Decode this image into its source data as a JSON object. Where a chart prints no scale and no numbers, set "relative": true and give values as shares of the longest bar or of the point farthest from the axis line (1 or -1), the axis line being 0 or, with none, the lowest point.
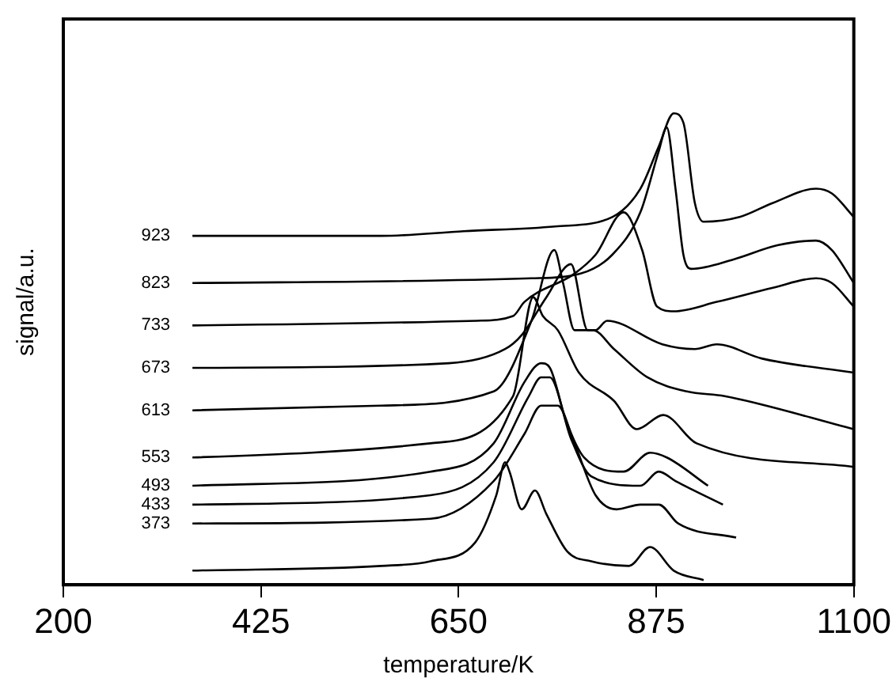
{
  "chart_data": {
    "type": "line",
    "xlabel": "temperature/K",
    "ylabel": "signal/a.u.",
    "relative": true,
    "xlim": [
      200,
      1100
    ],
    "xticks": [
      200,
      425,
      650,
      875,
      1100
    ],
    "grid": false,
    "legend": false,
    "marker": "none",
    "line_style": "solid",
    "series": [
      {
        "name": "923",
        "color": "#000000",
        "x": [
          347,
          562,
          656,
          760,
          825,
          857,
          878,
          895,
          906,
          919,
          929,
          970,
          1008,
          1057,
          1075,
          1100
        ],
        "values": [
          0.74,
          0.74,
          0.75,
          0.76,
          0.78,
          0.84,
          0.93,
          1,
          0.98,
          0.81,
          0.77,
          0.78,
          0.81,
          0.84,
          0.83,
          0.78
        ]
      },
      {
        "name": "823",
        "color": "#000000",
        "x": [
          347,
          733,
          789,
          825,
          857,
          878,
          887,
          897,
          906,
          915,
          963,
          1013,
          1057,
          1075,
          1100
        ],
        "values": [
          0.64,
          0.65,
          0.66,
          0.7,
          0.79,
          0.92,
          0.97,
          0.84,
          0.7,
          0.67,
          0.69,
          0.72,
          0.73,
          0.71,
          0.64
        ]
      },
      {
        "name": "733",
        "color": "#000000",
        "x": [
          347,
          671,
          712,
          725,
          782,
          806,
          838,
          859,
          876,
          895,
          944,
          1008,
          1057,
          1075,
          1100
        ],
        "values": [
          0.55,
          0.56,
          0.57,
          0.6,
          0.66,
          0.7,
          0.79,
          0.71,
          0.59,
          0.58,
          0.6,
          0.63,
          0.65,
          0.64,
          0.59
        ]
      },
      {
        "name": "673",
        "color": "#000000",
        "x": [
          347,
          639,
          703,
          722,
          750,
          778,
          797,
          806,
          819,
          882,
          919,
          944,
          995,
          1100
        ],
        "values": [
          0.46,
          0.47,
          0.5,
          0.53,
          0.61,
          0.68,
          0.54,
          0.54,
          0.56,
          0.51,
          0.5,
          0.51,
          0.48,
          0.45
        ]
      },
      {
        "name": "613",
        "color": "#000000",
        "x": [
          347,
          562,
          690,
          733,
          759,
          769,
          782,
          789,
          803,
          827,
          865,
          910,
          953,
          1100
        ],
        "values": [
          0.37,
          0.38,
          0.41,
          0.56,
          0.71,
          0.64,
          0.54,
          0.54,
          0.54,
          0.5,
          0.44,
          0.41,
          0.4,
          0.33
        ]
      },
      {
        "name": "553",
        "color": "#000000",
        "x": [
          347,
          618,
          712,
          735,
          746,
          763,
          787,
          827,
          853,
          883,
          921,
          1100
        ],
        "values": [
          0.27,
          0.3,
          0.4,
          0.61,
          0.57,
          0.54,
          0.45,
          0.39,
          0.33,
          0.36,
          0.3,
          0.25
        ]
      },
      {
        "name": "493",
        "color": "#000000",
        "x": [
          347,
          618,
          690,
          725,
          744,
          754,
          772,
          793,
          838,
          868,
          887,
          934
        ],
        "values": [
          0.21,
          0.24,
          0.3,
          0.43,
          0.47,
          0.46,
          0.35,
          0.27,
          0.24,
          0.28,
          0.27,
          0.21
        ]
      },
      {
        "name": "433",
        "color": "#000000",
        "x": [
          347,
          618,
          690,
          730,
          744,
          754,
          778,
          801,
          857,
          878,
          897,
          951
        ],
        "values": [
          0.17,
          0.19,
          0.26,
          0.4,
          0.44,
          0.44,
          0.31,
          0.23,
          0.21,
          0.24,
          0.22,
          0.17
        ]
      },
      {
        "name": "373",
        "color": "#000000",
        "x": [
          347,
          618,
          690,
          725,
          744,
          763,
          782,
          806,
          830,
          857,
          878,
          900,
          966
        ],
        "values": [
          0.13,
          0.14,
          0.22,
          0.32,
          0.38,
          0.38,
          0.3,
          0.19,
          0.16,
          0.17,
          0.17,
          0.13,
          0.1
        ]
      },
      {
        "color": "#000000",
        "x": [
          347,
          562,
          618,
          669,
          693,
          703,
          708,
          722,
          737,
          750,
          774,
          801,
          844,
          868,
          895,
          929
        ],
        "values": [
          0.03,
          0.04,
          0.05,
          0.09,
          0.19,
          0.26,
          0.24,
          0.16,
          0.2,
          0.15,
          0.07,
          0.05,
          0.04,
          0.08,
          0.03,
          0.01
        ]
      }
    ]
  }
}
